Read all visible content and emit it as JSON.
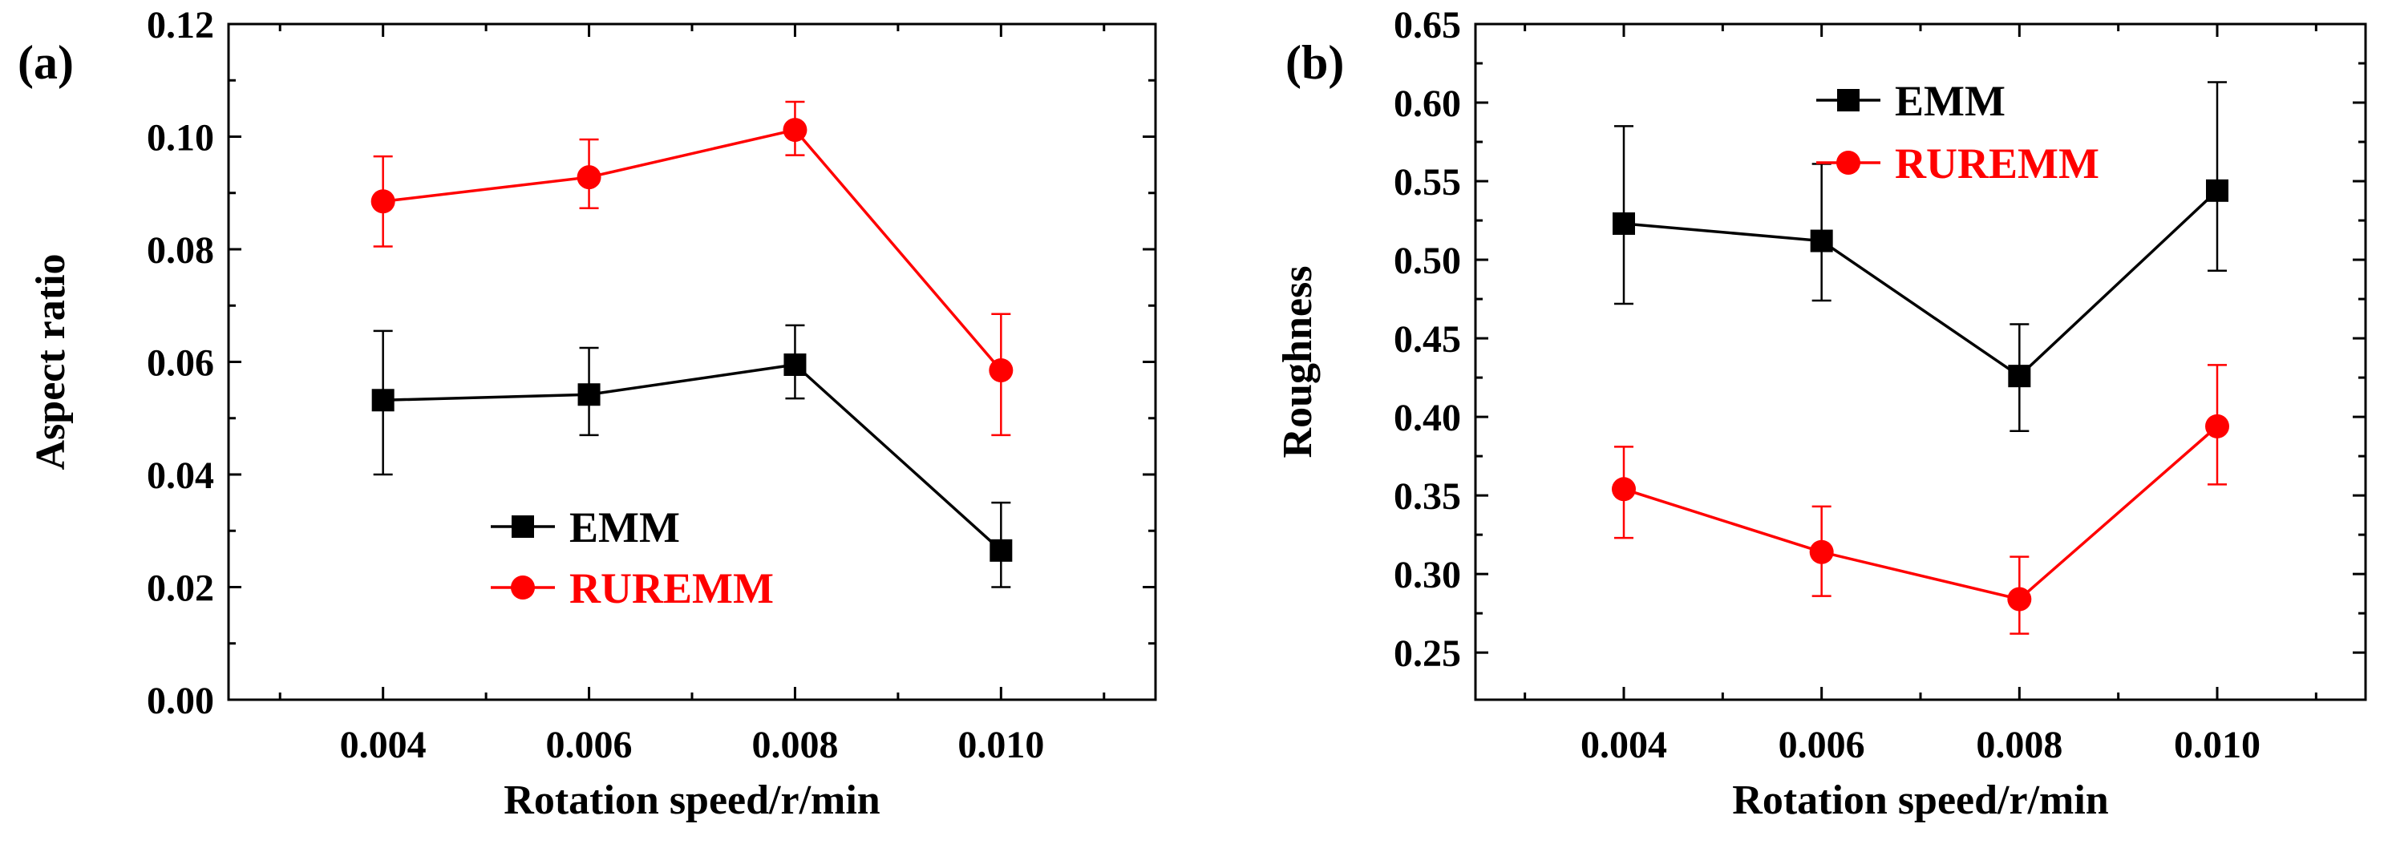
{
  "chart_data": [
    {
      "type": "line",
      "panel_label": "(a)",
      "title": "",
      "xlabel": "Rotation speed/r/min",
      "ylabel": "Aspect ratio",
      "categories": [
        "0.004",
        "0.006",
        "0.008",
        "0.010"
      ],
      "x": [
        0.004,
        0.006,
        0.008,
        0.01
      ],
      "xlim": [
        0.0025,
        0.0115
      ],
      "ylim": [
        0.0,
        0.12
      ],
      "yticks": [
        "0.00",
        "0.02",
        "0.04",
        "0.06",
        "0.08",
        "0.10",
        "0.12"
      ],
      "grid": false,
      "legend": "lower-center",
      "series": [
        {
          "name": "EMM",
          "color": "#000000",
          "marker": "square",
          "values": [
            0.0532,
            0.0542,
            0.0595,
            0.0265
          ],
          "err_low": [
            0.0132,
            0.0072,
            0.006,
            0.0065
          ],
          "err_high": [
            0.0123,
            0.0083,
            0.007,
            0.0085
          ]
        },
        {
          "name": "RUREMM",
          "color": "#ff0000",
          "marker": "circle",
          "values": [
            0.0885,
            0.0928,
            0.1012,
            0.0585
          ],
          "err_low": [
            0.008,
            0.0055,
            0.0045,
            0.0115
          ],
          "err_high": [
            0.008,
            0.0067,
            0.005,
            0.01
          ]
        }
      ]
    },
    {
      "type": "line",
      "panel_label": "(b)",
      "title": "",
      "xlabel": "Rotation speed/r/min",
      "ylabel": "Roughness",
      "categories": [
        "0.004",
        "0.006",
        "0.008",
        "0.010"
      ],
      "x": [
        0.004,
        0.006,
        0.008,
        0.01
      ],
      "xlim": [
        0.0025,
        0.0115
      ],
      "ylim": [
        0.22,
        0.65
      ],
      "yticks": [
        "0.25",
        "0.30",
        "0.35",
        "0.40",
        "0.45",
        "0.50",
        "0.55",
        "0.60",
        "0.65"
      ],
      "grid": false,
      "legend": "top-center",
      "series": [
        {
          "name": "EMM",
          "color": "#000000",
          "marker": "square",
          "values": [
            0.523,
            0.512,
            0.426,
            0.544
          ],
          "err_low": [
            0.051,
            0.038,
            0.035,
            0.051
          ],
          "err_high": [
            0.062,
            0.049,
            0.033,
            0.069
          ]
        },
        {
          "name": "RUREMM",
          "color": "#ff0000",
          "marker": "circle",
          "values": [
            0.354,
            0.314,
            0.284,
            0.394
          ],
          "err_low": [
            0.031,
            0.028,
            0.022,
            0.037
          ],
          "err_high": [
            0.027,
            0.029,
            0.027,
            0.039
          ]
        }
      ]
    }
  ]
}
